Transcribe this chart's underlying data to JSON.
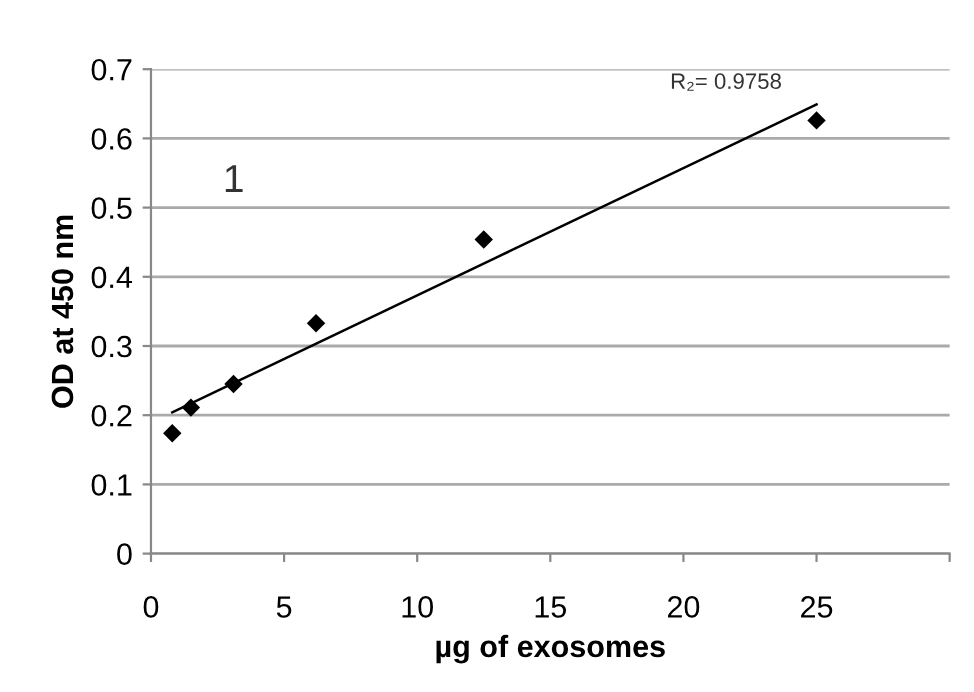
{
  "chart_data": {
    "type": "scatter",
    "xlabel": "µg of exosomes",
    "ylabel": "OD at 450 nm",
    "series": [
      {
        "color": "#000000",
        "marker": "diamond",
        "x": [
          0.8,
          1.5,
          3.1,
          6.2,
          12.5,
          25
        ],
        "values": [
          0.174,
          0.211,
          0.245,
          0.333,
          0.454,
          0.626
        ]
      },
      {
        "type": "line",
        "color": "#000000",
        "marker": "none",
        "x": [
          0.8,
          25
        ],
        "values": [
          0.204,
          0.649
        ]
      }
    ],
    "annotations": [
      "R₂= 0.9758",
      "1"
    ],
    "xlim": [
      0,
      30
    ],
    "xticks": [
      0,
      5,
      10,
      15,
      20,
      25,
      {
        "value": 30,
        "label": null
      }
    ],
    "ylim": [
      0,
      0.7
    ],
    "yticks": [
      0,
      0.1,
      0.2,
      0.3,
      0.4,
      0.5,
      0.6,
      0.7
    ],
    "grid": "y"
  }
}
